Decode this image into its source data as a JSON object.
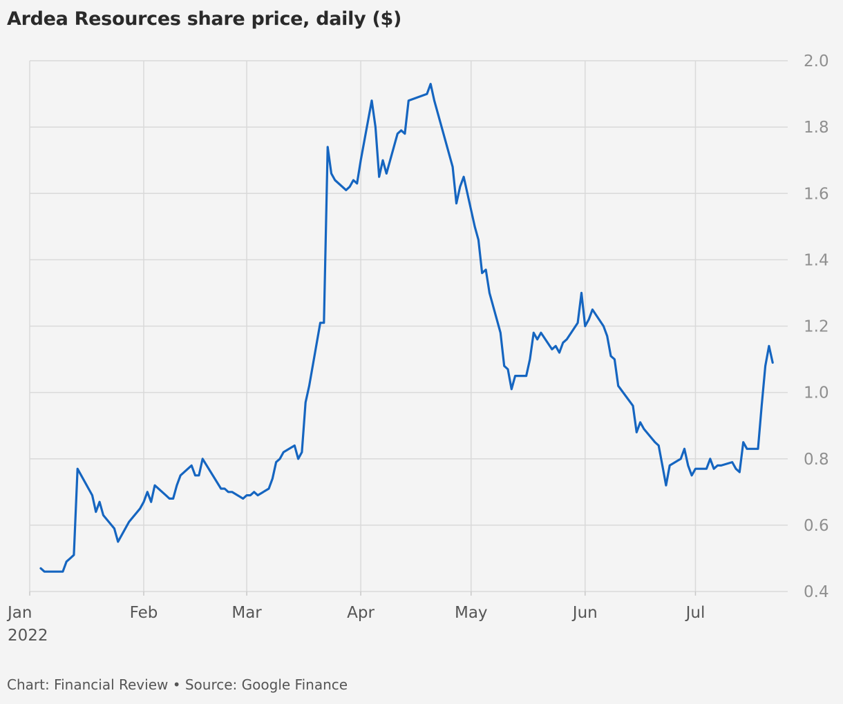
{
  "title": "Ardea Resources share price, daily ($)",
  "footer": "Chart: Financial Review • Source: Google Finance",
  "colors": {
    "line": "#1565c0",
    "grid": "#d9d9d9",
    "background": "#f4f4f4"
  },
  "chart_data": {
    "type": "line",
    "title": "Ardea Resources share price, daily ($)",
    "xlabel": "",
    "ylabel": "",
    "grid": true,
    "legend": "none",
    "ylim": [
      0.4,
      2.0
    ],
    "xlim": [
      "2022-01-01",
      "2022-07-31"
    ],
    "y_ticks": [
      "0.4",
      "0.6",
      "0.8",
      "1.0",
      "1.2",
      "1.4",
      "1.6",
      "1.8",
      "2.0"
    ],
    "x_ticks": [
      {
        "date": "2022-01-01",
        "label": "Jan",
        "sublabel": "2022"
      },
      {
        "date": "2022-02-01",
        "label": "Feb"
      },
      {
        "date": "2022-03-01",
        "label": "Mar"
      },
      {
        "date": "2022-04-01",
        "label": "Apr"
      },
      {
        "date": "2022-05-01",
        "label": "May"
      },
      {
        "date": "2022-06-01",
        "label": "Jun"
      },
      {
        "date": "2022-07-01",
        "label": "Jul"
      }
    ],
    "series": [
      {
        "points": [
          [
            "2022-01-04",
            0.47
          ],
          [
            "2022-01-05",
            0.46
          ],
          [
            "2022-01-06",
            0.46
          ],
          [
            "2022-01-07",
            0.46
          ],
          [
            "2022-01-10",
            0.46
          ],
          [
            "2022-01-11",
            0.49
          ],
          [
            "2022-01-12",
            0.5
          ],
          [
            "2022-01-13",
            0.51
          ],
          [
            "2022-01-14",
            0.77
          ],
          [
            "2022-01-18",
            0.69
          ],
          [
            "2022-01-19",
            0.64
          ],
          [
            "2022-01-20",
            0.67
          ],
          [
            "2022-01-21",
            0.63
          ],
          [
            "2022-01-24",
            0.59
          ],
          [
            "2022-01-25",
            0.55
          ],
          [
            "2022-01-28",
            0.61
          ],
          [
            "2022-01-31",
            0.65
          ],
          [
            "2022-02-01",
            0.67
          ],
          [
            "2022-02-02",
            0.7
          ],
          [
            "2022-02-03",
            0.67
          ],
          [
            "2022-02-04",
            0.72
          ],
          [
            "2022-02-07",
            0.69
          ],
          [
            "2022-02-08",
            0.68
          ],
          [
            "2022-02-09",
            0.68
          ],
          [
            "2022-02-10",
            0.72
          ],
          [
            "2022-02-11",
            0.75
          ],
          [
            "2022-02-14",
            0.78
          ],
          [
            "2022-02-15",
            0.75
          ],
          [
            "2022-02-16",
            0.75
          ],
          [
            "2022-02-17",
            0.8
          ],
          [
            "2022-02-22",
            0.71
          ],
          [
            "2022-02-23",
            0.71
          ],
          [
            "2022-02-24",
            0.7
          ],
          [
            "2022-02-25",
            0.7
          ],
          [
            "2022-02-28",
            0.68
          ],
          [
            "2022-03-01",
            0.69
          ],
          [
            "2022-03-02",
            0.69
          ],
          [
            "2022-03-03",
            0.7
          ],
          [
            "2022-03-04",
            0.69
          ],
          [
            "2022-03-07",
            0.71
          ],
          [
            "2022-03-08",
            0.74
          ],
          [
            "2022-03-09",
            0.79
          ],
          [
            "2022-03-10",
            0.8
          ],
          [
            "2022-03-11",
            0.82
          ],
          [
            "2022-03-14",
            0.84
          ],
          [
            "2022-03-15",
            0.8
          ],
          [
            "2022-03-16",
            0.82
          ],
          [
            "2022-03-17",
            0.97
          ],
          [
            "2022-03-18",
            1.02
          ],
          [
            "2022-03-21",
            1.21
          ],
          [
            "2022-03-22",
            1.21
          ],
          [
            "2022-03-23",
            1.74
          ],
          [
            "2022-03-24",
            1.66
          ],
          [
            "2022-03-25",
            1.64
          ],
          [
            "2022-03-28",
            1.61
          ],
          [
            "2022-03-29",
            1.62
          ],
          [
            "2022-03-30",
            1.64
          ],
          [
            "2022-03-31",
            1.63
          ],
          [
            "2022-04-01",
            1.7
          ],
          [
            "2022-04-04",
            1.88
          ],
          [
            "2022-04-05",
            1.8
          ],
          [
            "2022-04-06",
            1.65
          ],
          [
            "2022-04-07",
            1.7
          ],
          [
            "2022-04-08",
            1.66
          ],
          [
            "2022-04-11",
            1.78
          ],
          [
            "2022-04-12",
            1.79
          ],
          [
            "2022-04-13",
            1.78
          ],
          [
            "2022-04-14",
            1.88
          ],
          [
            "2022-04-19",
            1.9
          ],
          [
            "2022-04-20",
            1.93
          ],
          [
            "2022-04-21",
            1.88
          ],
          [
            "2022-04-26",
            1.68
          ],
          [
            "2022-04-27",
            1.57
          ],
          [
            "2022-04-28",
            1.62
          ],
          [
            "2022-04-29",
            1.65
          ],
          [
            "2022-05-02",
            1.5
          ],
          [
            "2022-05-03",
            1.46
          ],
          [
            "2022-05-04",
            1.36
          ],
          [
            "2022-05-05",
            1.37
          ],
          [
            "2022-05-06",
            1.3
          ],
          [
            "2022-05-09",
            1.18
          ],
          [
            "2022-05-10",
            1.08
          ],
          [
            "2022-05-11",
            1.07
          ],
          [
            "2022-05-12",
            1.01
          ],
          [
            "2022-05-13",
            1.05
          ],
          [
            "2022-05-16",
            1.05
          ],
          [
            "2022-05-17",
            1.1
          ],
          [
            "2022-05-18",
            1.18
          ],
          [
            "2022-05-19",
            1.16
          ],
          [
            "2022-05-20",
            1.18
          ],
          [
            "2022-05-23",
            1.13
          ],
          [
            "2022-05-24",
            1.14
          ],
          [
            "2022-05-25",
            1.12
          ],
          [
            "2022-05-26",
            1.15
          ],
          [
            "2022-05-27",
            1.16
          ],
          [
            "2022-05-30",
            1.21
          ],
          [
            "2022-05-31",
            1.3
          ],
          [
            "2022-06-01",
            1.2
          ],
          [
            "2022-06-02",
            1.22
          ],
          [
            "2022-06-03",
            1.25
          ],
          [
            "2022-06-06",
            1.2
          ],
          [
            "2022-06-07",
            1.17
          ],
          [
            "2022-06-08",
            1.11
          ],
          [
            "2022-06-09",
            1.1
          ],
          [
            "2022-06-10",
            1.02
          ],
          [
            "2022-06-14",
            0.96
          ],
          [
            "2022-06-15",
            0.88
          ],
          [
            "2022-06-16",
            0.91
          ],
          [
            "2022-06-17",
            0.89
          ],
          [
            "2022-06-20",
            0.85
          ],
          [
            "2022-06-21",
            0.84
          ],
          [
            "2022-06-22",
            0.78
          ],
          [
            "2022-06-23",
            0.72
          ],
          [
            "2022-06-24",
            0.78
          ],
          [
            "2022-06-27",
            0.8
          ],
          [
            "2022-06-28",
            0.83
          ],
          [
            "2022-06-29",
            0.78
          ],
          [
            "2022-06-30",
            0.75
          ],
          [
            "2022-07-01",
            0.77
          ],
          [
            "2022-07-04",
            0.77
          ],
          [
            "2022-07-05",
            0.8
          ],
          [
            "2022-07-06",
            0.77
          ],
          [
            "2022-07-07",
            0.78
          ],
          [
            "2022-07-08",
            0.78
          ],
          [
            "2022-07-11",
            0.79
          ],
          [
            "2022-07-12",
            0.77
          ],
          [
            "2022-07-13",
            0.76
          ],
          [
            "2022-07-14",
            0.85
          ],
          [
            "2022-07-15",
            0.83
          ],
          [
            "2022-07-18",
            0.83
          ],
          [
            "2022-07-19",
            0.96
          ],
          [
            "2022-07-20",
            1.08
          ],
          [
            "2022-07-21",
            1.14
          ],
          [
            "2022-07-22",
            1.09
          ]
        ]
      }
    ]
  }
}
